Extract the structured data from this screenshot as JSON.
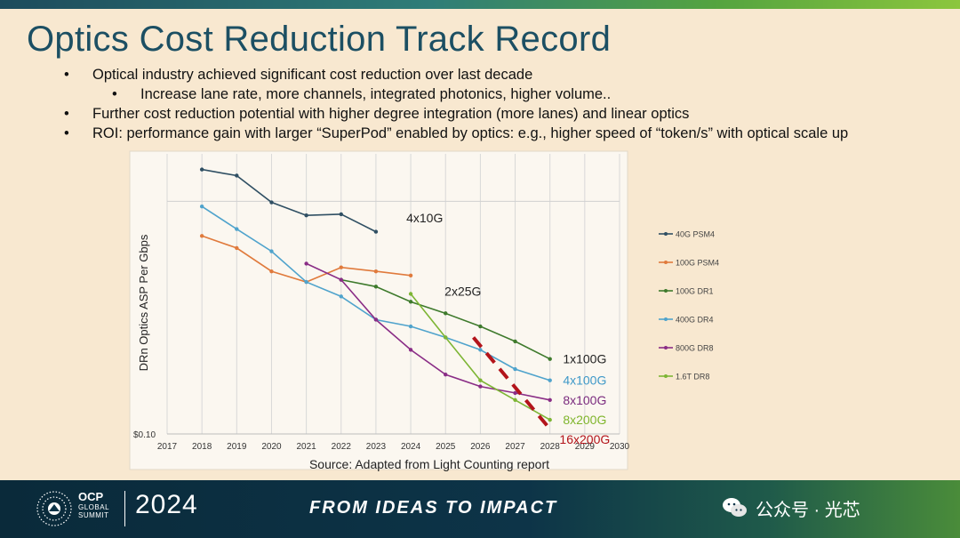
{
  "title": "Optics Cost Reduction Track Record",
  "bullets": [
    {
      "text": "Optical industry achieved significant cost reduction over last decade",
      "dot": "•"
    },
    {
      "text": "Increase lane rate, more channels, integrated photonics, higher volume..",
      "dot": "•"
    },
    {
      "text": "Further cost reduction potential with higher degree integration (more lanes) and linear optics",
      "dot": "•"
    },
    {
      "text": "ROI: performance gain with larger “SuperPod” enabled by optics: e.g., higher speed of “token/s” with optical scale up",
      "dot": "•"
    }
  ],
  "chart_data": {
    "type": "line",
    "ylabel": "DRn Optics ASP Per Gbps",
    "ytick": "$0.10",
    "source": "Source: Adapted from Light Counting report",
    "x_ticks": [
      2017,
      2018,
      2019,
      2020,
      2021,
      2022,
      2023,
      2024,
      2025,
      2026,
      2027,
      2028,
      2029,
      2030
    ],
    "xlim": [
      2017,
      2030
    ],
    "y_scale": "log",
    "ylim": [
      0.1,
      1.6
    ],
    "grid": true,
    "legend_position": "right",
    "series": [
      {
        "name": "40G PSM4",
        "color": "#2f4f63",
        "x": [
          2018,
          2019,
          2020,
          2021,
          2022,
          2023
        ],
        "y": [
          1.37,
          1.29,
          0.99,
          0.87,
          0.88,
          0.74
        ]
      },
      {
        "name": "100G PSM4",
        "color": "#e07a3c",
        "x": [
          2018,
          2019,
          2020,
          2021,
          2022,
          2023,
          2024
        ],
        "y": [
          0.71,
          0.63,
          0.5,
          0.45,
          0.52,
          0.5,
          0.48
        ]
      },
      {
        "name": "100G DR1",
        "color": "#3e7a2c",
        "x": [
          2022,
          2023,
          2024,
          2025,
          2026,
          2027,
          2028
        ],
        "y": [
          0.46,
          0.43,
          0.37,
          0.33,
          0.29,
          0.25,
          0.21
        ]
      },
      {
        "name": "400G DR4",
        "color": "#4fa3cc",
        "x": [
          2018,
          2019,
          2020,
          2021,
          2022,
          2023,
          2024,
          2025,
          2026,
          2027,
          2028
        ],
        "y": [
          0.95,
          0.76,
          0.61,
          0.45,
          0.39,
          0.31,
          0.29,
          0.26,
          0.23,
          0.19,
          0.17
        ]
      },
      {
        "name": "800G DR8",
        "color": "#8a2d86",
        "x": [
          2021,
          2022,
          2023,
          2024,
          2025,
          2026,
          2027,
          2028
        ],
        "y": [
          0.54,
          0.46,
          0.31,
          0.23,
          0.18,
          0.16,
          0.15,
          0.14
        ]
      },
      {
        "name": "1.6T DR8",
        "color": "#7db534",
        "x": [
          2024,
          2025,
          2026,
          2027,
          2028
        ],
        "y": [
          0.4,
          0.26,
          0.17,
          0.14,
          0.115
        ]
      }
    ],
    "trend": {
      "name": "16x200G",
      "color": "#b3141b",
      "x": [
        2025.8,
        2028
      ],
      "y": [
        0.26,
        0.105
      ]
    },
    "annotations": [
      {
        "text": "4x10G",
        "color": "#222222",
        "at_x": 2024.4,
        "at_y": 0.85
      },
      {
        "text": "2x25G",
        "color": "#222222",
        "at_x": 2025.5,
        "at_y": 0.41
      },
      {
        "text": "1x100G",
        "color": "#222222",
        "at_x": 2029.0,
        "at_y": 0.21
      },
      {
        "text": "4x100G",
        "color": "#3e98c8",
        "at_x": 2029.0,
        "at_y": 0.17
      },
      {
        "text": "8x100G",
        "color": "#7a2a7e",
        "at_x": 2029.0,
        "at_y": 0.14
      },
      {
        "text": "8x200G",
        "color": "#7fb52c",
        "at_x": 2029.0,
        "at_y": 0.115
      },
      {
        "text": "16x200G",
        "color": "#b3141b",
        "at_x": 2029.0,
        "at_y": 0.095
      }
    ]
  },
  "footer": {
    "org": "OCP",
    "sub1": "GLOBAL",
    "sub2": "SUMMIT",
    "year": "2024",
    "tagline": "FROM IDEAS TO IMPACT",
    "watermark": "公众号 · 光芯",
    "accent": "#8cc63e"
  }
}
